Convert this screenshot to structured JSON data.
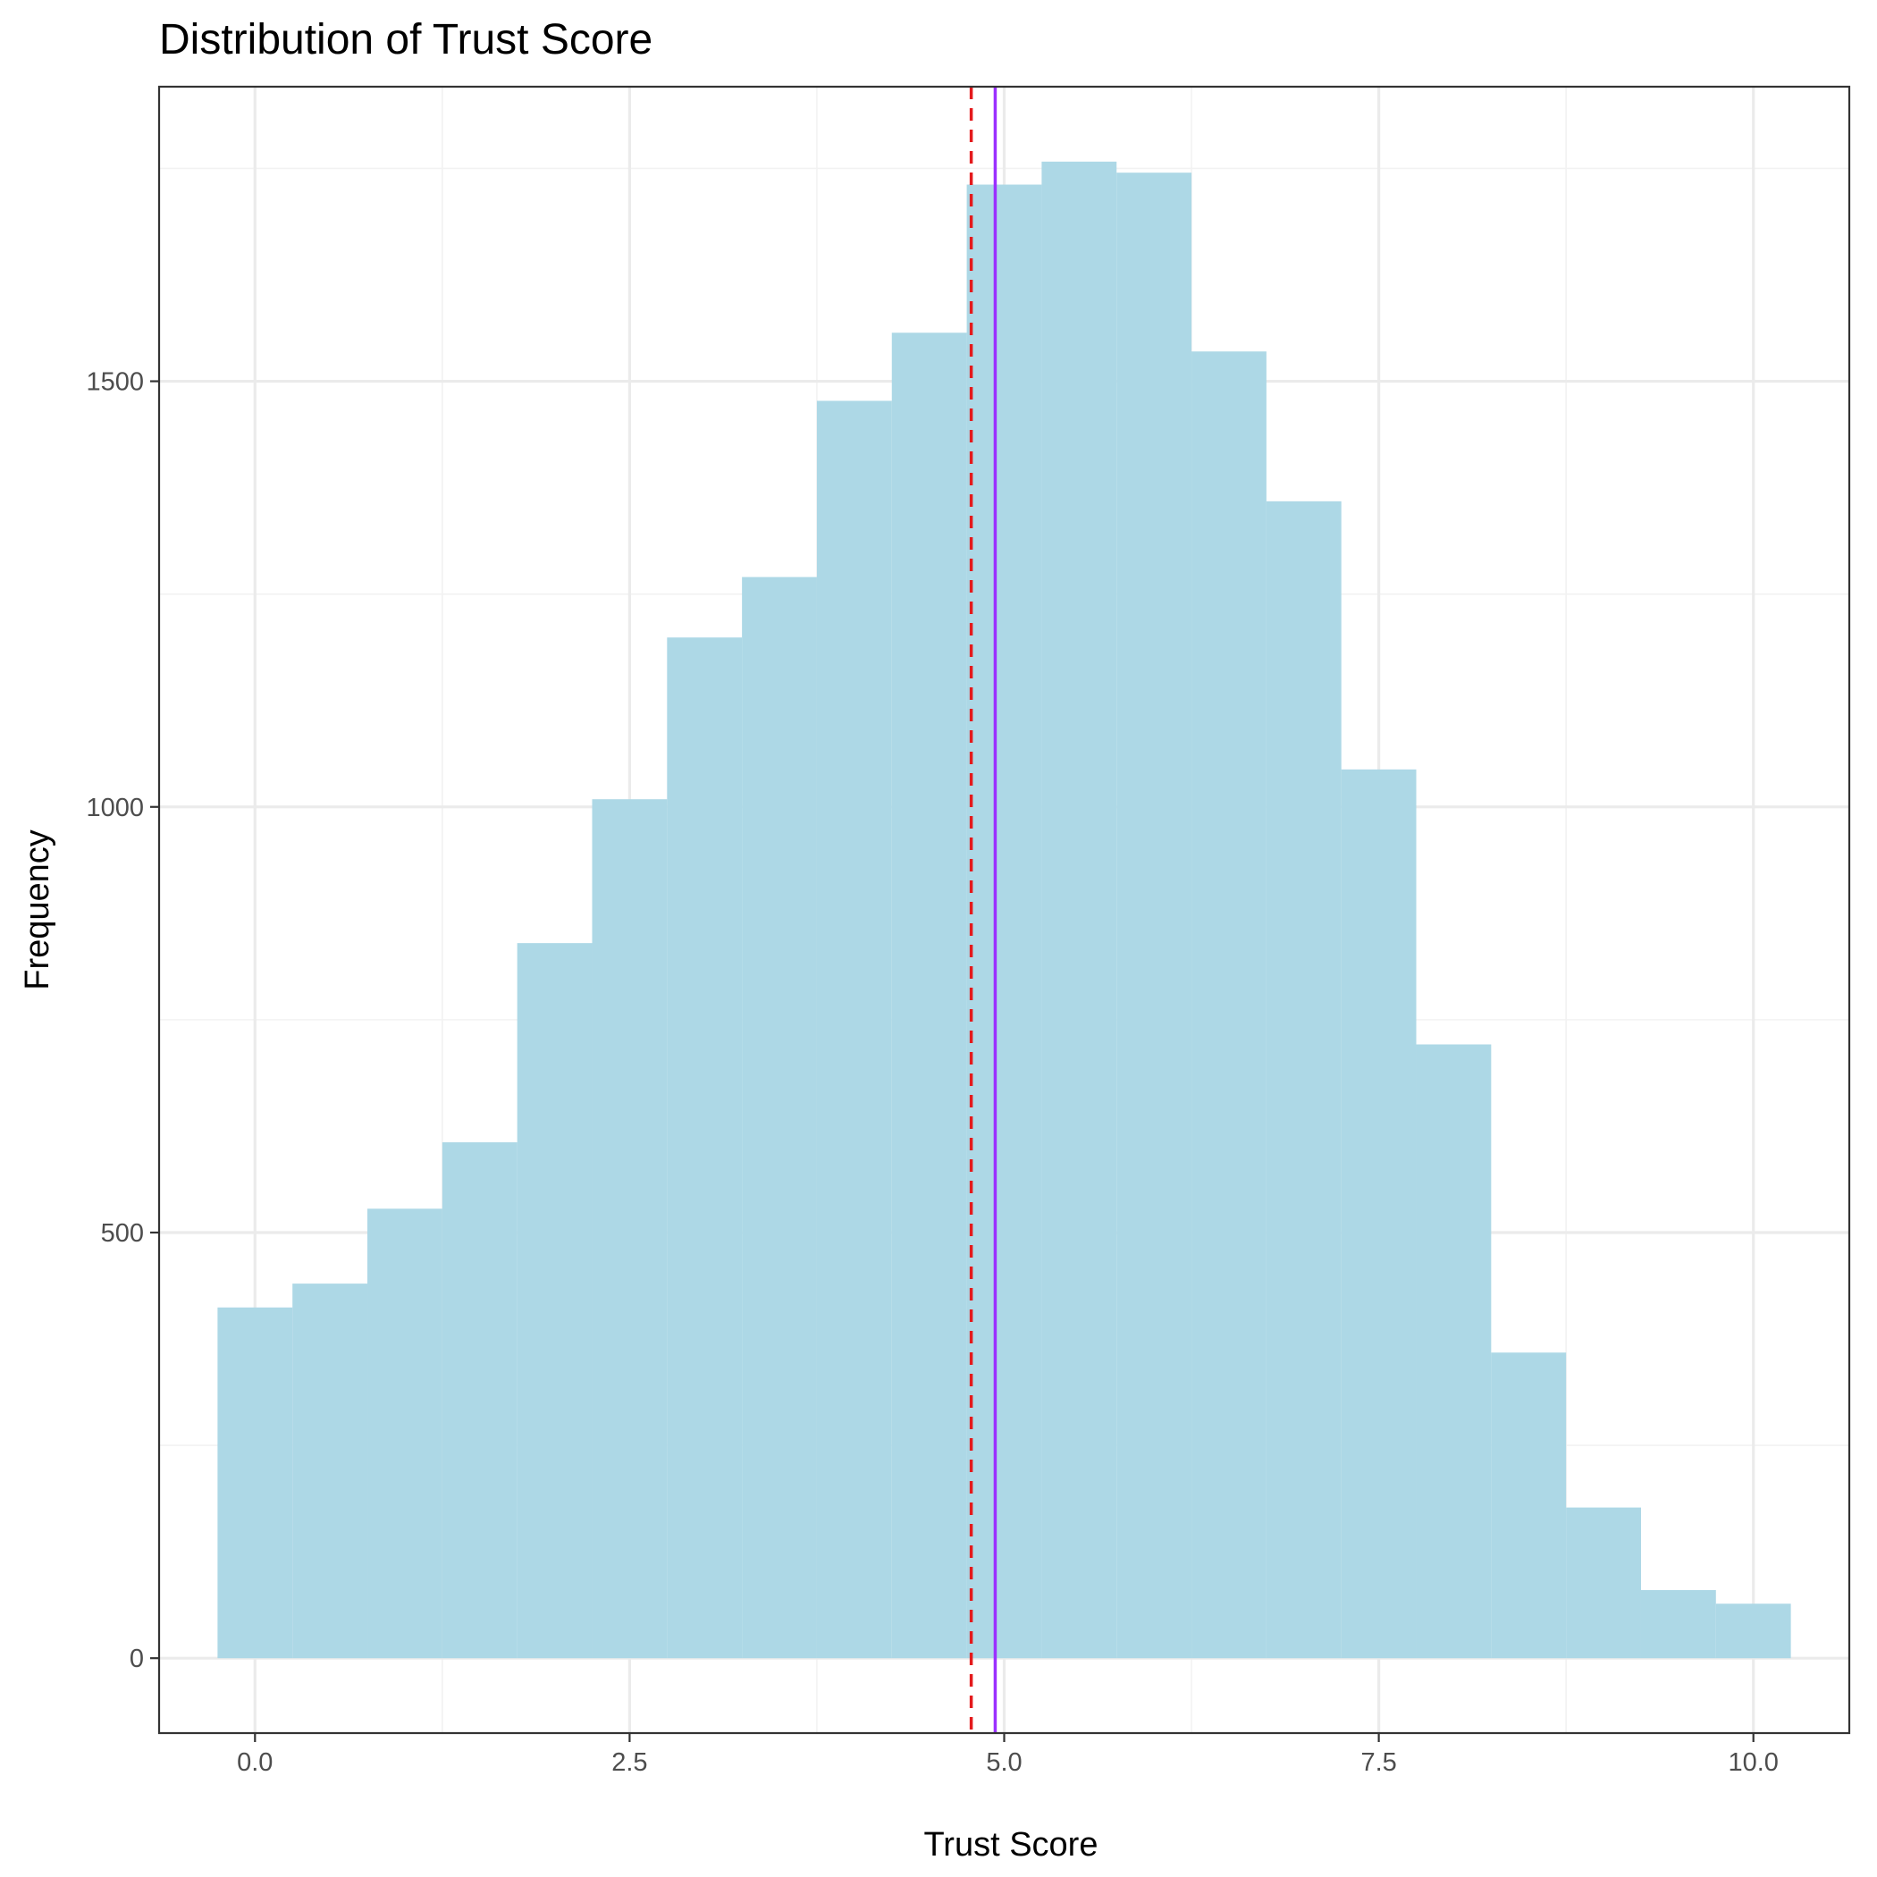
{
  "chart_data": {
    "type": "bar",
    "subtype": "histogram",
    "title": "Distribution of Trust Score",
    "xlabel": "Trust Score",
    "ylabel": "Frequency",
    "xlim": [
      -0.64,
      10.64
    ],
    "ylim": [
      -88,
      1846
    ],
    "x_ticks": [
      0,
      2.5,
      5,
      7.5,
      10
    ],
    "x_tick_labels": [
      "0.0",
      "2.5",
      "5.0",
      "7.5",
      "10.0"
    ],
    "y_ticks": [
      0,
      500,
      1000,
      1500
    ],
    "y_tick_labels": [
      "0",
      "500",
      "1000",
      "1500"
    ],
    "bin_width": 0.5,
    "bins": [
      {
        "start": -0.25,
        "end": 0.25,
        "count": 412
      },
      {
        "start": 0.25,
        "end": 0.75,
        "count": 440
      },
      {
        "start": 0.75,
        "end": 1.25,
        "count": 528
      },
      {
        "start": 1.25,
        "end": 1.75,
        "count": 606
      },
      {
        "start": 1.75,
        "end": 2.25,
        "count": 840
      },
      {
        "start": 2.25,
        "end": 2.75,
        "count": 1009
      },
      {
        "start": 2.75,
        "end": 3.25,
        "count": 1199
      },
      {
        "start": 3.25,
        "end": 3.75,
        "count": 1270
      },
      {
        "start": 3.75,
        "end": 4.25,
        "count": 1477
      },
      {
        "start": 4.25,
        "end": 4.75,
        "count": 1557
      },
      {
        "start": 4.75,
        "end": 5.25,
        "count": 1731
      },
      {
        "start": 5.25,
        "end": 5.75,
        "count": 1758
      },
      {
        "start": 5.75,
        "end": 6.25,
        "count": 1745
      },
      {
        "start": 6.25,
        "end": 6.75,
        "count": 1535
      },
      {
        "start": 6.75,
        "end": 7.25,
        "count": 1359
      },
      {
        "start": 7.25,
        "end": 7.75,
        "count": 1044
      },
      {
        "start": 7.75,
        "end": 8.25,
        "count": 721
      },
      {
        "start": 8.25,
        "end": 8.75,
        "count": 359
      },
      {
        "start": 8.75,
        "end": 9.25,
        "count": 177
      },
      {
        "start": 9.25,
        "end": 9.75,
        "count": 80
      },
      {
        "start": 9.75,
        "end": 10.25,
        "count": 64
      }
    ],
    "reference_lines": [
      {
        "x": 4.78,
        "color": "#e41a1c",
        "style": "dashed"
      },
      {
        "x": 4.94,
        "color": "#9b30ff",
        "style": "solid"
      }
    ],
    "bar_color": "#add8e6",
    "grid": true,
    "legend": "none"
  }
}
